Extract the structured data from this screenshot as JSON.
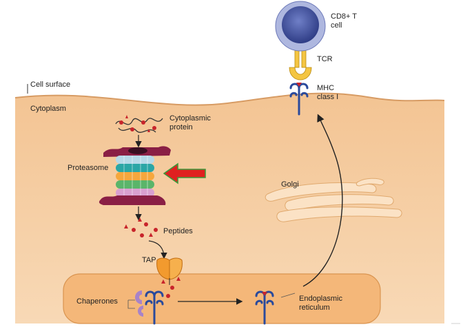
{
  "labels": {
    "cell_surface": "Cell surface",
    "cytoplasm": "Cytoplasm",
    "cytoplasmic_protein": "Cytoplasmic protein",
    "proteasome": "Proteasome",
    "peptides": "Peptides",
    "tap": "TAP",
    "chaperones": "Chaperones",
    "endoplasmic_reticulum": "Endoplasmic reticulum",
    "golgi": "Golgi",
    "mhc_class_i": "MHC class I",
    "tcr": "TCR",
    "cd8_t_cell": "CD8+ T cell"
  },
  "colors": {
    "cytoplasm": "#f6cfa3",
    "er": "#f4b779",
    "golgi": "#fbe2c5",
    "t_cell_outer": "#9da8d8",
    "t_cell_inner": "#3f4f97",
    "tcr": "#f4c542",
    "mhc": "#2a4a9c",
    "highlight_arrow": "#e02020",
    "tap": "#f29a2e",
    "peptide": "#c8242b"
  }
}
